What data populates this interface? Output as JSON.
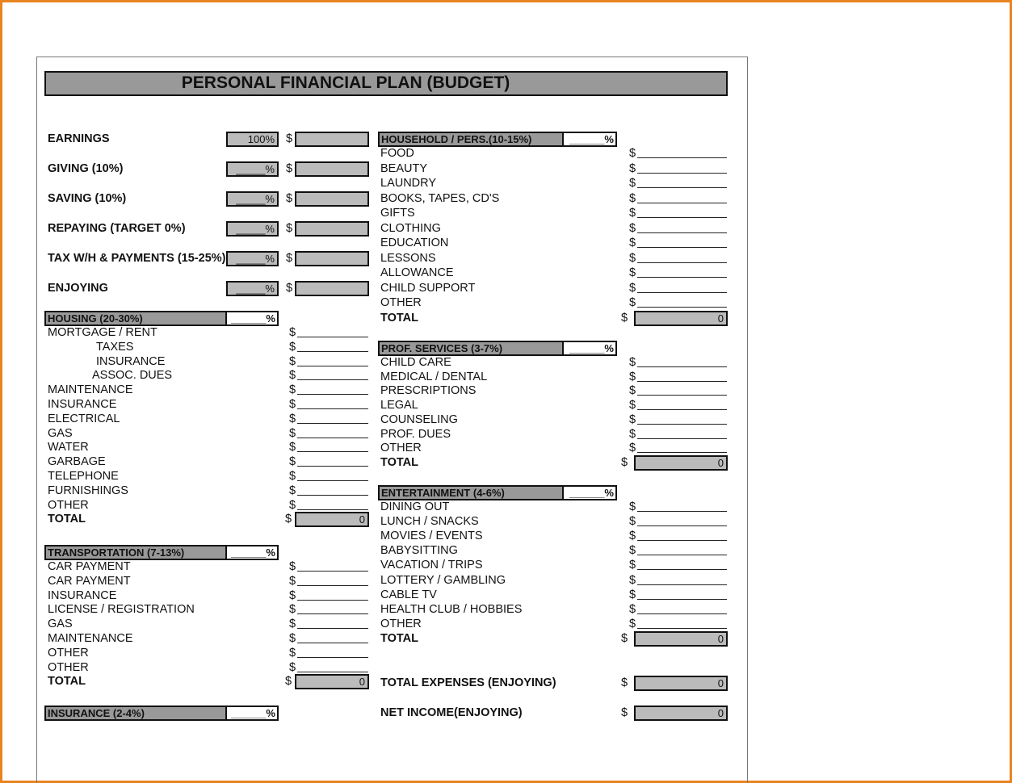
{
  "title": "PERSONAL FINANCIAL PLAN (BUDGET)",
  "summary": [
    {
      "label": "EARNINGS",
      "pct": "100%",
      "amount": ""
    },
    {
      "label": "GIVING (10%)",
      "pct": "_____%",
      "amount": ""
    },
    {
      "label": "SAVING (10%)",
      "pct": "_____%",
      "amount": ""
    },
    {
      "label": "REPAYING (TARGET 0%)",
      "pct": "_____%",
      "amount": ""
    },
    {
      "label": "TAX W/H & PAYMENTS (15-25%)",
      "pct": "_____%",
      "amount": ""
    },
    {
      "label": "ENJOYING",
      "pct": "_____%",
      "amount": ""
    }
  ],
  "currency": "$",
  "sections_left": [
    {
      "header": "HOUSING (20-30%)",
      "pct": "______%",
      "items": [
        "MORTGAGE / RENT",
        "TAXES",
        "INSURANCE",
        "ASSOC. DUES",
        "MAINTENANCE",
        "INSURANCE",
        "ELECTRICAL",
        "GAS",
        "WATER",
        "GARBAGE",
        "TELEPHONE",
        "FURNISHINGS",
        "OTHER"
      ],
      "indent": [
        1,
        2,
        3
      ],
      "total_label": "TOTAL",
      "total": "0"
    },
    {
      "header": "TRANSPORTATION (7-13%)",
      "pct": "______%",
      "items": [
        "CAR PAYMENT",
        "CAR PAYMENT",
        "INSURANCE",
        "LICENSE / REGISTRATION",
        "GAS",
        "MAINTENANCE",
        "OTHER",
        "OTHER"
      ],
      "total_label": "TOTAL",
      "total": "0"
    },
    {
      "header": "INSURANCE (2-4%)",
      "pct": "______%",
      "items": []
    }
  ],
  "sections_right": [
    {
      "header": "HOUSEHOLD / PERS.(10-15%)",
      "pct": "______%",
      "items": [
        "FOOD",
        "BEAUTY",
        "LAUNDRY",
        "BOOKS, TAPES, CD'S",
        "GIFTS",
        "CLOTHING",
        "EDUCATION",
        "LESSONS",
        "ALLOWANCE",
        "CHILD SUPPORT",
        "OTHER"
      ],
      "total_label": "TOTAL",
      "total": "0"
    },
    {
      "header": "PROF. SERVICES (3-7%)",
      "pct": "______%",
      "items": [
        "CHILD CARE",
        "MEDICAL / DENTAL",
        "PRESCRIPTIONS",
        "LEGAL",
        "COUNSELING",
        "PROF. DUES",
        "OTHER"
      ],
      "total_label": "TOTAL",
      "total": "0"
    },
    {
      "header": "ENTERTAINMENT (4-6%)",
      "pct": "______%",
      "items": [
        "DINING OUT",
        "LUNCH / SNACKS",
        "MOVIES / EVENTS",
        "BABYSITTING",
        "VACATION / TRIPS",
        "LOTTERY / GAMBLING",
        "CABLE TV",
        "HEALTH CLUB / HOBBIES",
        "OTHER"
      ],
      "total_label": "TOTAL",
      "total": "0"
    }
  ],
  "totals": [
    {
      "label": "TOTAL EXPENSES (ENJOYING)",
      "value": "0"
    },
    {
      "label": "NET INCOME(ENJOYING)",
      "value": "0"
    }
  ]
}
